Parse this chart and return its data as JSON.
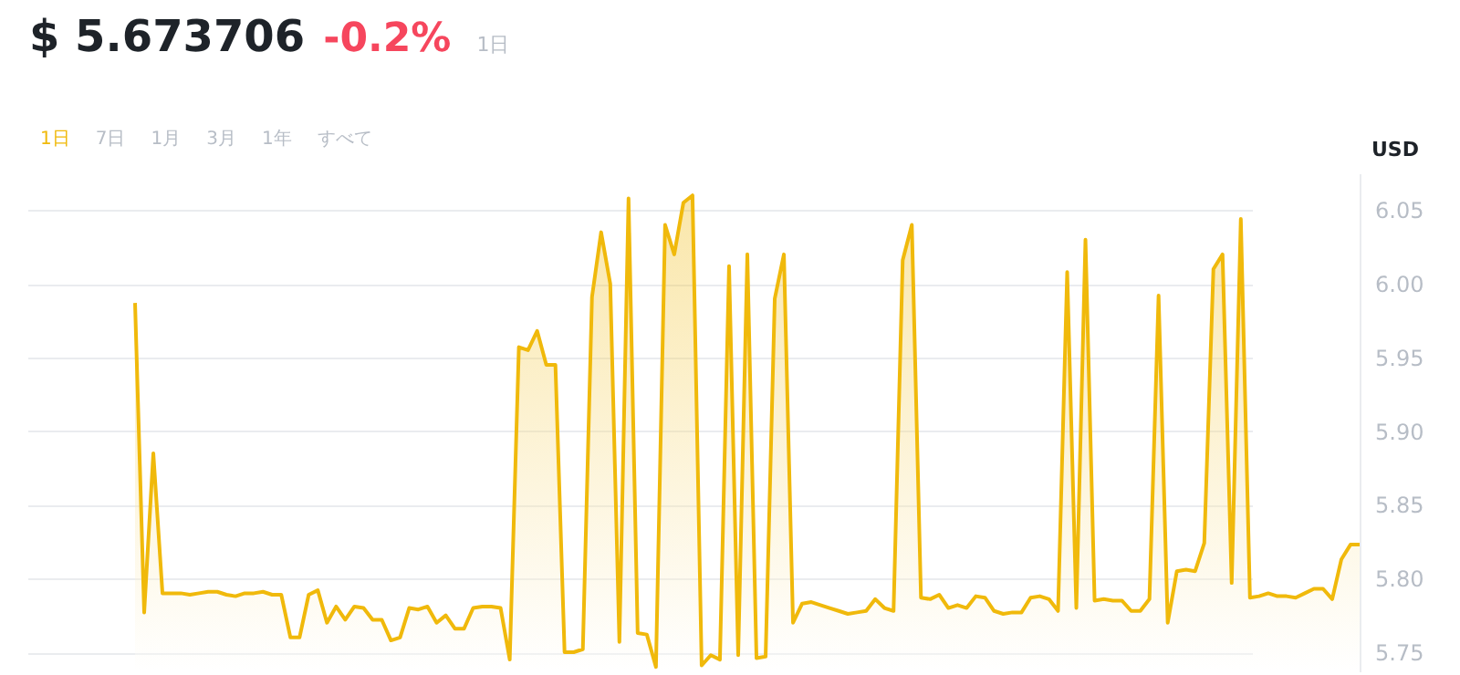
{
  "chart_data": {
    "type": "area",
    "title": "$ 5.673706",
    "subtitle": "-0.2%",
    "ylabel": "USD",
    "annotations": [
      "1日",
      "1日",
      "7日",
      "1月",
      "3月",
      "1年",
      "すべて"
    ],
    "categories": [
      null,
      null,
      null,
      null,
      null,
      null,
      null,
      null,
      null,
      null,
      null,
      null,
      null,
      null,
      null,
      null,
      null,
      null,
      null,
      null,
      null,
      null,
      null,
      null,
      null,
      null,
      null,
      null,
      null,
      null,
      null,
      null,
      null,
      null,
      null,
      null,
      null,
      null,
      null,
      null,
      null,
      null,
      null,
      null,
      null,
      null,
      null,
      null,
      null,
      null,
      null,
      null,
      null,
      null,
      null,
      null,
      null,
      null,
      null,
      null,
      null,
      null,
      null,
      null,
      null,
      null,
      null,
      null,
      null,
      null,
      null,
      null,
      null,
      null,
      null,
      null,
      null,
      null,
      null,
      null,
      null,
      null,
      null,
      null,
      null,
      null,
      null,
      null,
      null,
      null,
      null,
      null,
      null,
      null,
      null,
      null,
      null,
      null,
      null,
      null,
      null,
      null,
      null,
      null,
      null,
      null,
      null,
      null,
      null,
      null,
      null,
      null,
      null,
      null,
      null,
      null,
      null,
      null,
      null,
      null,
      null,
      null,
      null,
      null,
      null,
      null,
      null,
      null,
      null,
      null,
      null,
      null,
      null,
      null,
      null
    ],
    "series": [
      {
        "color": "#f0b90b",
        "values": [
          5.987,
          5.777,
          5.885,
          5.79,
          5.79,
          5.79,
          5.789,
          5.79,
          5.791,
          5.791,
          5.789,
          5.788,
          5.79,
          5.79,
          5.791,
          5.789,
          5.789,
          5.76,
          5.76,
          5.789,
          5.792,
          5.77,
          5.781,
          5.772,
          5.781,
          5.78,
          5.772,
          5.772,
          5.758,
          5.76,
          5.78,
          5.779,
          5.781,
          5.77,
          5.775,
          5.766,
          5.766,
          5.78,
          5.781,
          5.781,
          5.78,
          5.745,
          5.957,
          5.955,
          5.968,
          5.945,
          5.945,
          5.75,
          5.75,
          5.752,
          5.991,
          6.035,
          6.0,
          5.757,
          6.058,
          5.763,
          5.762,
          5.74,
          6.04,
          6.02,
          6.055,
          6.06,
          5.741,
          5.748,
          5.745,
          6.012,
          5.748,
          6.02,
          5.746,
          5.747,
          5.99,
          6.02,
          5.77,
          5.783,
          5.784,
          5.782,
          5.78,
          5.778,
          5.776,
          5.777,
          5.778,
          5.786,
          5.78,
          5.778,
          6.016,
          6.04,
          5.787,
          5.786,
          5.789,
          5.78,
          5.782,
          5.78,
          5.788,
          5.787,
          5.778,
          5.776,
          5.777,
          5.777,
          5.787,
          5.788,
          5.786,
          5.778,
          6.008,
          5.78,
          6.03,
          5.785,
          5.786,
          5.785,
          5.785,
          5.778,
          5.778,
          5.786,
          5.992,
          5.77,
          5.805,
          5.806,
          5.805,
          5.824,
          6.01,
          6.02,
          5.797,
          6.044,
          5.787,
          5.788,
          5.79,
          5.788,
          5.788,
          5.787,
          5.79,
          5.793,
          5.793,
          5.786,
          5.813,
          5.823,
          5.823
        ]
      }
    ],
    "ylim": [
      5.737,
      6.075
    ],
    "yticks": [
      5.75,
      {
        "value": 5.8,
        "label": "5.80"
      },
      5.85,
      {
        "value": 5.9,
        "label": "5.90"
      },
      5.95,
      {
        "value": 6,
        "label": "6.00"
      },
      6.05
    ],
    "grid": "y",
    "tick_labels": "y",
    "marker": "none",
    "line_style": "solid"
  }
}
